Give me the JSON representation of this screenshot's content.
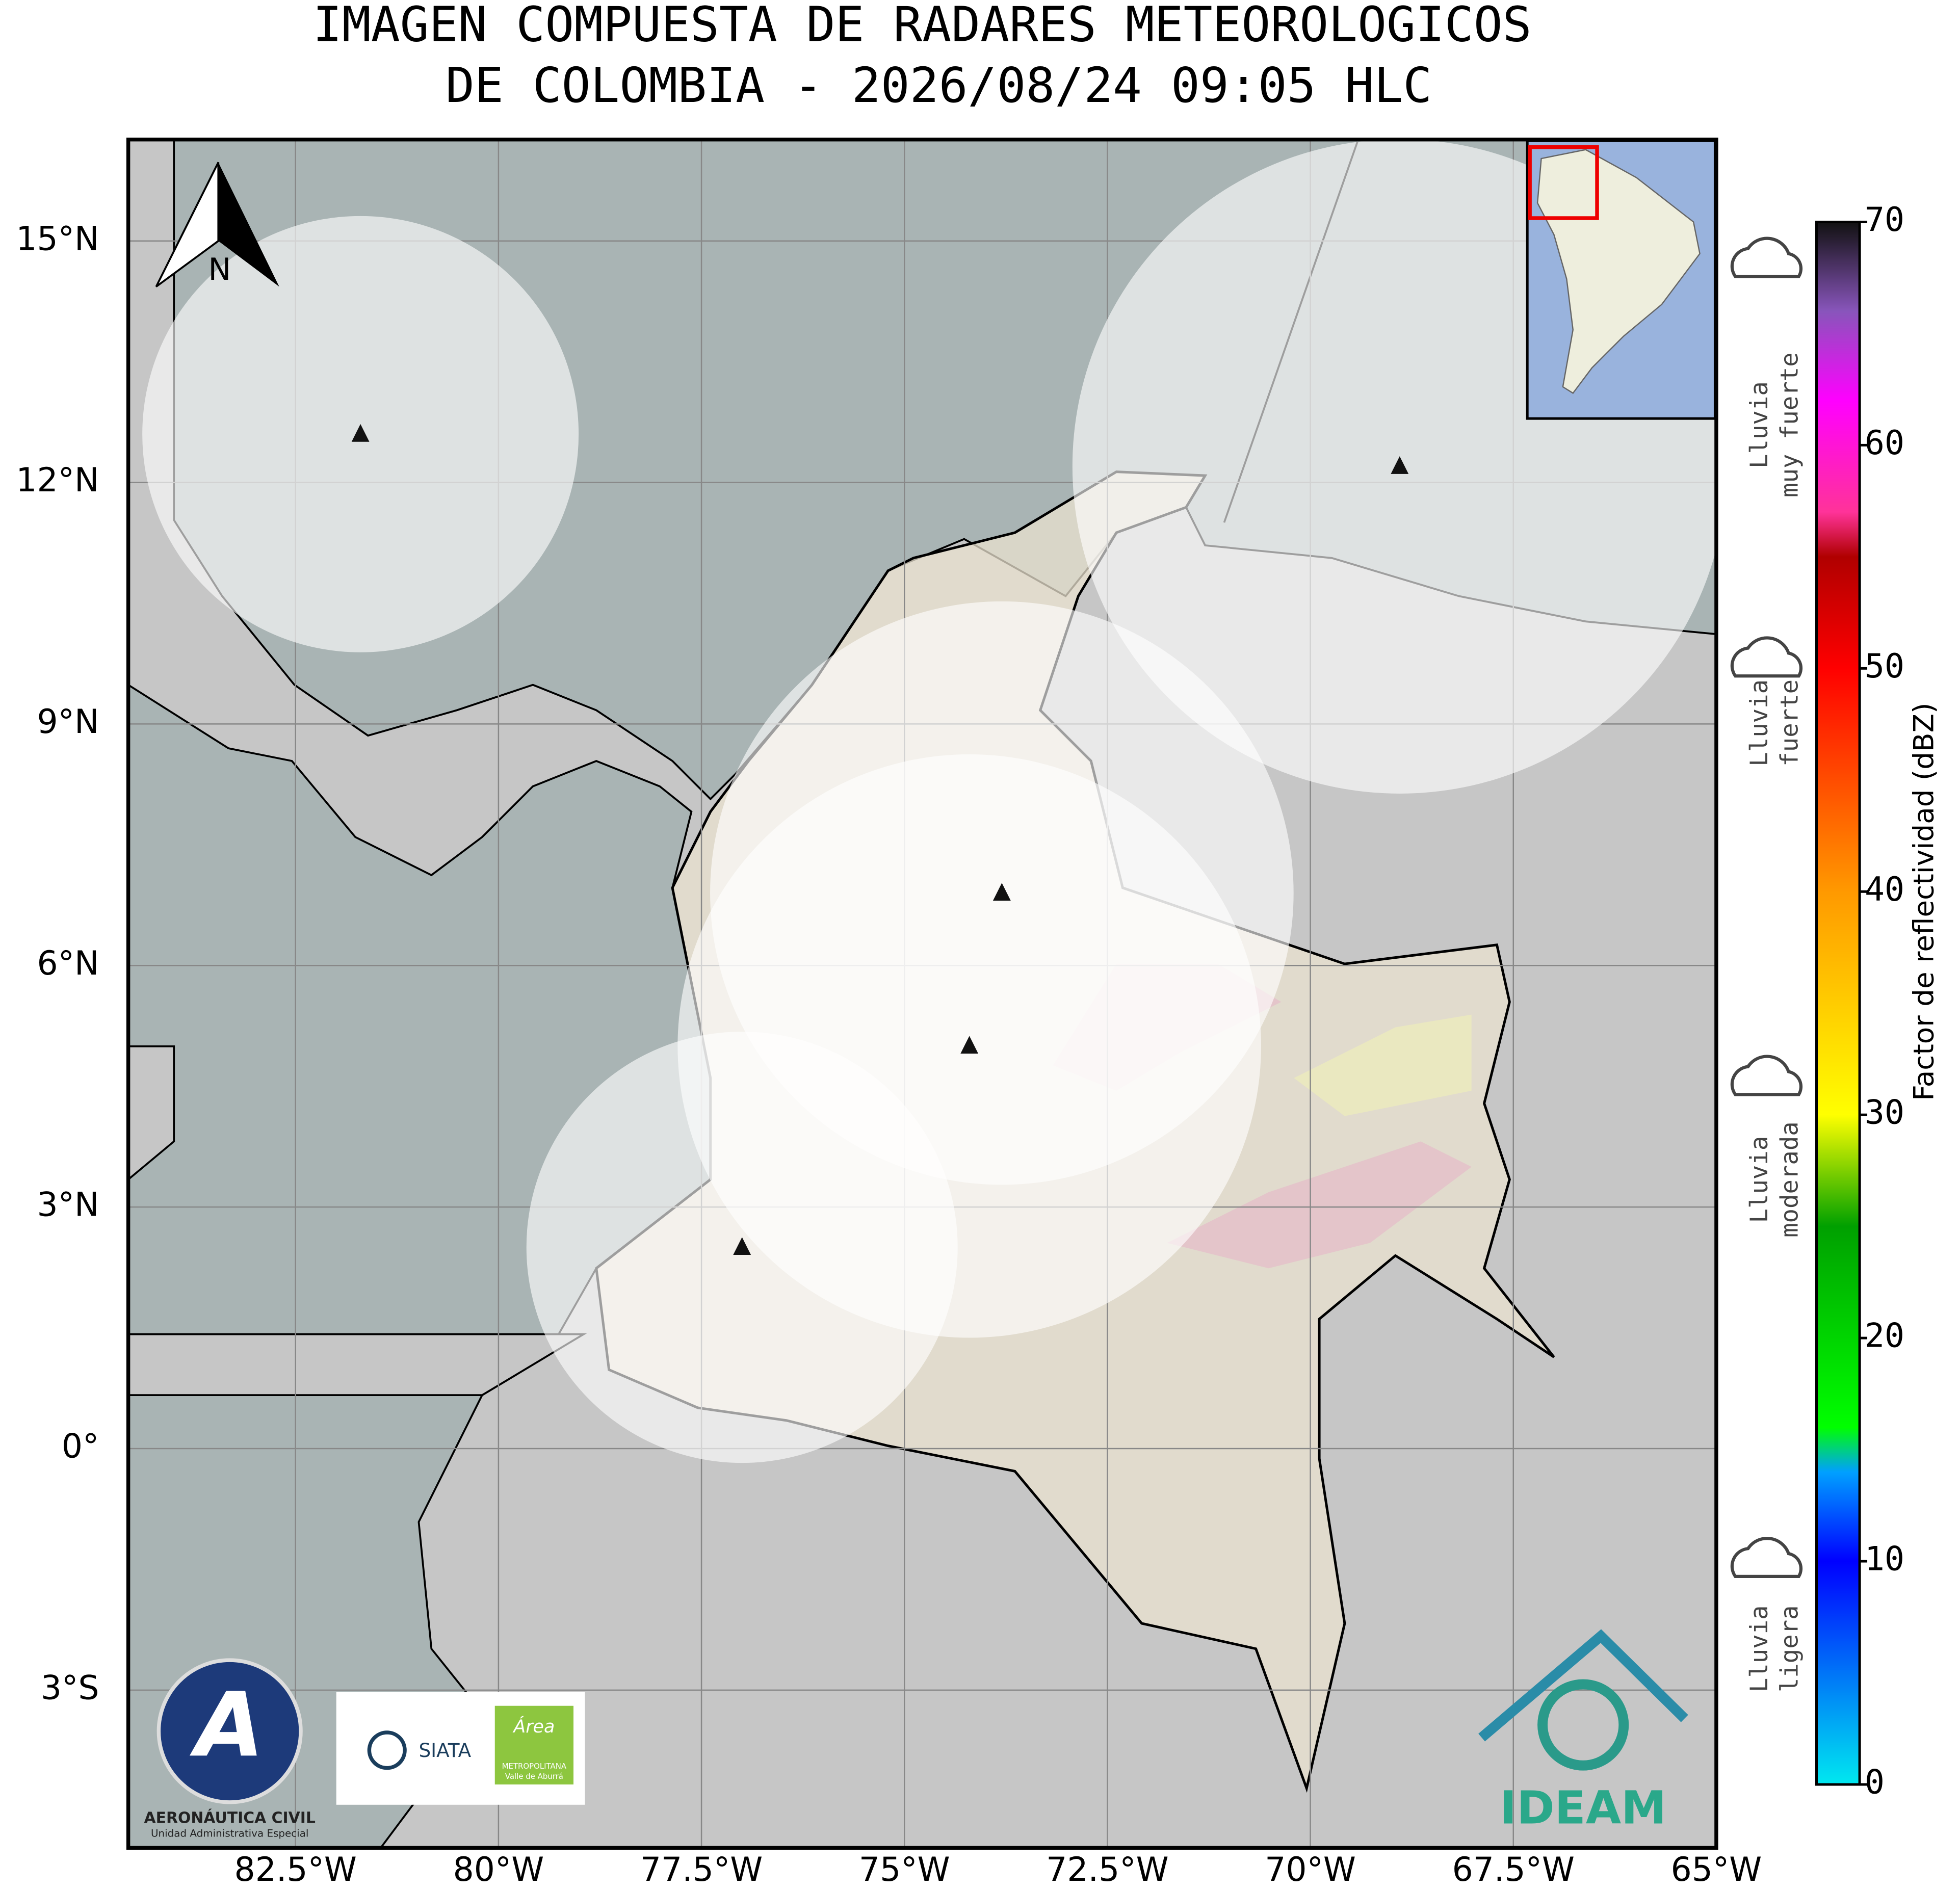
{
  "chart_data": {
    "type": "radar-map",
    "title_lines": [
      "IMAGEN COMPUESTA DE RADARES METEOROLOGICOS",
      "DE COLOMBIA - 2026/08/24 09:05 HLC"
    ],
    "xlim": [
      -84.56,
      -65
    ],
    "ylim": [
      -4.96,
      16.26
    ],
    "xticks": [
      {
        "value": -82.5,
        "label": "82.5°W"
      },
      {
        "value": -80,
        "label": "80°W"
      },
      {
        "value": -77.5,
        "label": "77.5°W"
      },
      {
        "value": -75,
        "label": "75°W"
      },
      {
        "value": -72.5,
        "label": "72.5°W"
      },
      {
        "value": -70,
        "label": "70°W"
      },
      {
        "value": -67.5,
        "label": "67.5°W"
      },
      {
        "value": -65,
        "label": "65°W"
      }
    ],
    "yticks": [
      {
        "value": 15,
        "label": "15°N"
      },
      {
        "value": 12,
        "label": "12°N"
      },
      {
        "value": 9,
        "label": "9°N"
      },
      {
        "value": 6,
        "label": "6°N"
      },
      {
        "value": 3,
        "label": "3°N"
      },
      {
        "value": 0,
        "label": "0°"
      },
      {
        "value": -3,
        "label": "3°S"
      }
    ],
    "grid": true,
    "radars": {
      "lon": [
        -81.7,
        -68.9,
        -73.8,
        -74.2,
        -77.0
      ],
      "lat": [
        12.6,
        12.2,
        6.9,
        5.0,
        2.5
      ]
    },
    "north_label": "N",
    "colorbar": {
      "label": "Factor de reflectividad (dBZ)",
      "lim": [
        0,
        70
      ],
      "ticks": [
        0,
        10,
        20,
        30,
        40,
        50,
        60,
        70
      ],
      "stops": [
        [
          0,
          "#00e8f0"
        ],
        [
          10,
          "#0000ff"
        ],
        [
          14,
          "#00a0ff"
        ],
        [
          16,
          "#00ff00"
        ],
        [
          25,
          "#00a000"
        ],
        [
          30,
          "#ffff00"
        ],
        [
          40,
          "#ff9900"
        ],
        [
          50,
          "#ff0000"
        ],
        [
          55,
          "#b00000"
        ],
        [
          57,
          "#ff3399"
        ],
        [
          62,
          "#ff00ff"
        ],
        [
          66,
          "#8855bb"
        ],
        [
          70,
          "#111111"
        ]
      ]
    },
    "rain_labels": [
      [
        "Lluvia",
        "ligera"
      ],
      [
        "Lluvia",
        "moderada"
      ],
      [
        "Lluvia",
        "fuerte"
      ],
      [
        "Lluvia",
        "muy fuerte"
      ]
    ],
    "logos": {
      "aerocivil": "AERONÁUTICA CIVIL",
      "aerocivil_sub": "Unidad Administrativa Especial",
      "siata": "SIATA",
      "area": "Área",
      "area_sub1": "METROPOLITANA",
      "area_sub2": "Valle de Aburrá",
      "ideam": "IDEAM"
    }
  }
}
